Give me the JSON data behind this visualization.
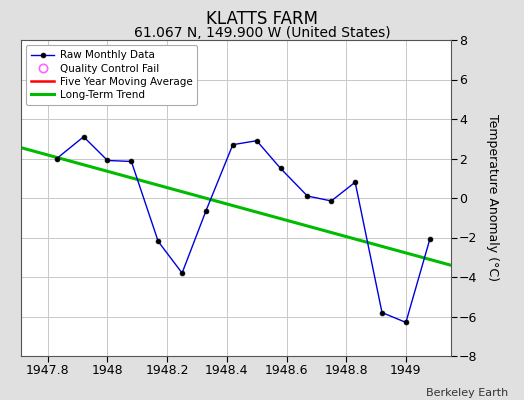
{
  "title": "KLATTS FARM",
  "subtitle": "61.067 N, 149.900 W (United States)",
  "ylabel": "Temperature Anomaly (°C)",
  "attribution": "Berkeley Earth",
  "xlim": [
    1947.71,
    1949.15
  ],
  "ylim": [
    -8,
    8
  ],
  "xticks": [
    1947.8,
    1948.0,
    1948.2,
    1948.4,
    1948.6,
    1948.8,
    1949.0
  ],
  "xticklabels": [
    "1947.8",
    "1948",
    "1948.2",
    "1948.4",
    "1948.6",
    "1948.8",
    "1949"
  ],
  "yticks": [
    -8,
    -6,
    -4,
    -2,
    0,
    2,
    4,
    6,
    8
  ],
  "raw_x": [
    1947.83,
    1947.92,
    1948.0,
    1948.08,
    1948.17,
    1948.25,
    1948.33,
    1948.42,
    1948.5,
    1948.58,
    1948.67,
    1948.75,
    1948.83,
    1948.92,
    1949.0,
    1949.08
  ],
  "raw_y": [
    2.0,
    3.1,
    1.9,
    1.85,
    -2.2,
    -3.8,
    -0.65,
    2.7,
    2.9,
    1.5,
    0.1,
    -0.15,
    0.8,
    -5.8,
    -6.3,
    -2.1
  ],
  "trend_x": [
    1947.71,
    1949.15
  ],
  "trend_y": [
    2.55,
    -3.4
  ],
  "raw_line_color": "#0000dd",
  "raw_marker_color": "#000000",
  "trend_color": "#00bb00",
  "ma_color": "#ff0000",
  "background_color": "#e0e0e0",
  "plot_bg_color": "#ffffff",
  "grid_color": "#c8c8c8",
  "title_fontsize": 12,
  "subtitle_fontsize": 10,
  "tick_fontsize": 9,
  "ylabel_fontsize": 9
}
